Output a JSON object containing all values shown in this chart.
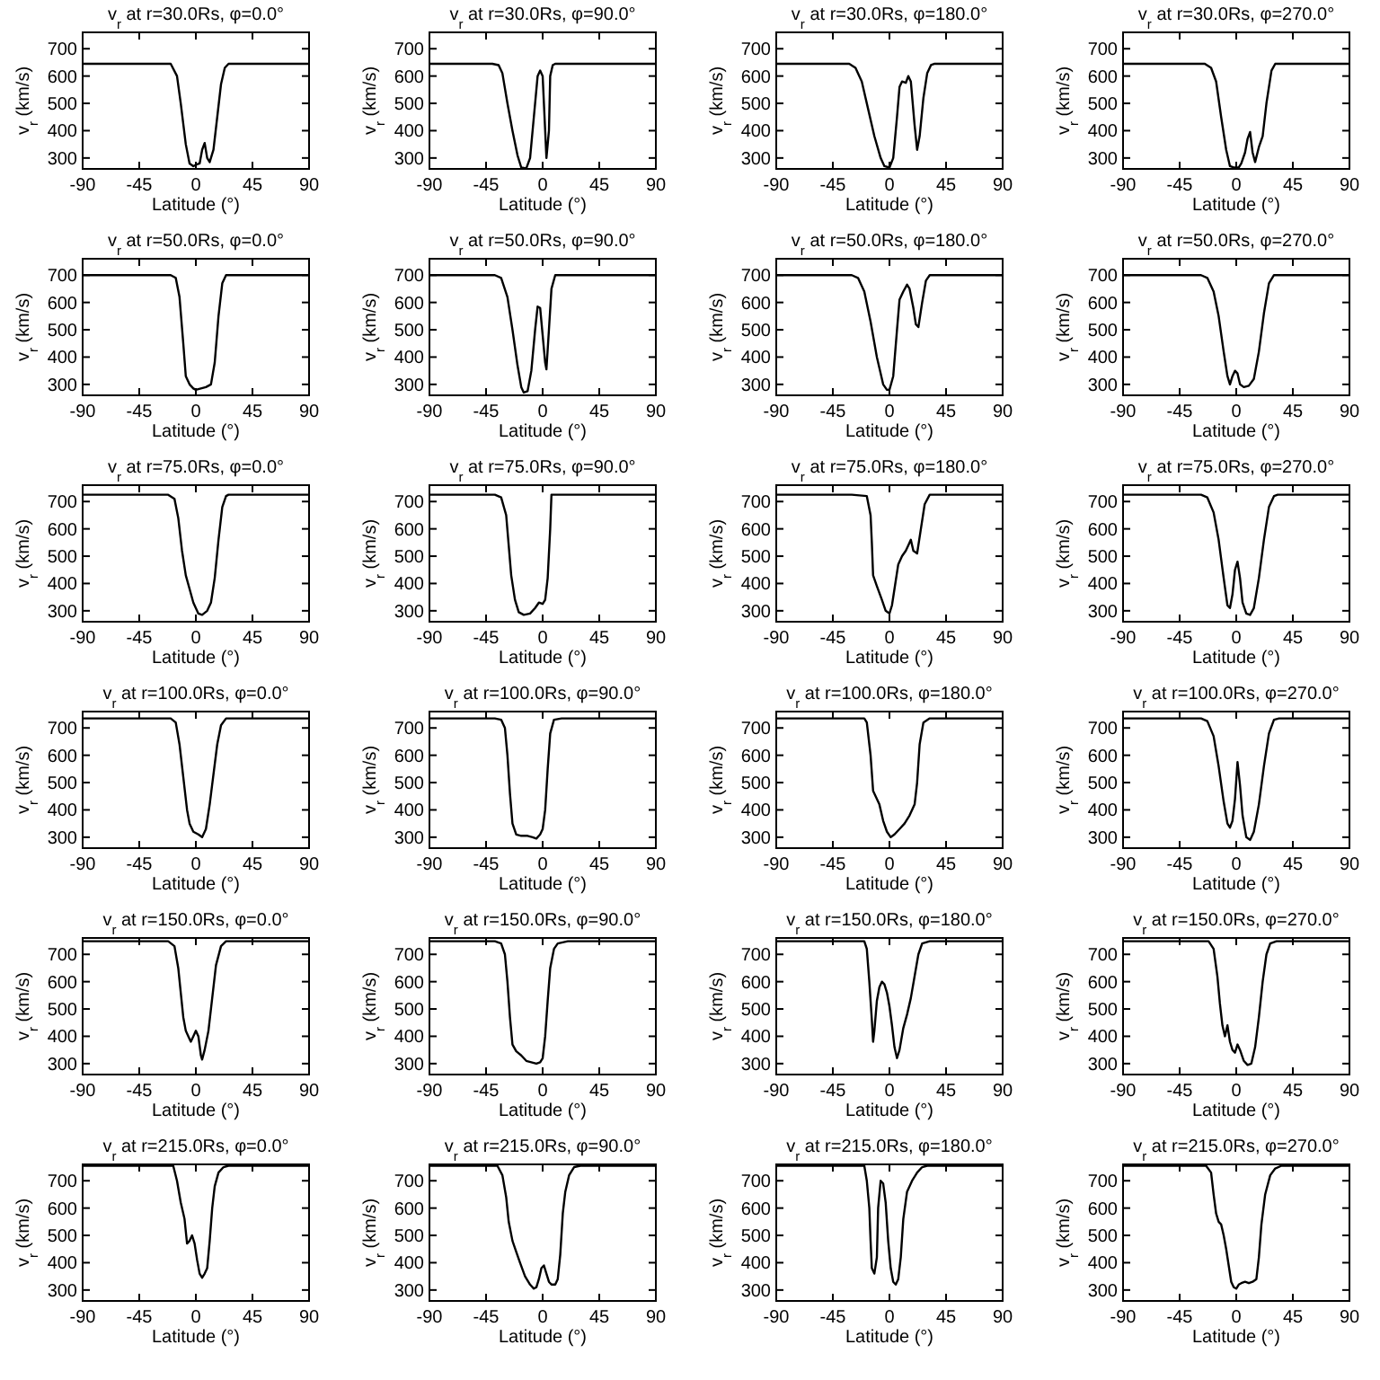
{
  "chart_data": [
    {
      "type": "line",
      "title": "v$_{r}$ at r=30.0Rs, φ=0.0°",
      "xlabel": "Latitude (°)",
      "ylabel": "v$_{r}$ (km/s)",
      "xlim": [
        -90,
        90
      ],
      "ylim": [
        260,
        760
      ],
      "xticks": [
        -90,
        -45,
        0,
        45,
        90
      ],
      "yticks": [
        300,
        400,
        500,
        600,
        700
      ],
      "color": "#000000",
      "x": [
        -90,
        -20,
        -15,
        -12,
        -8,
        -5,
        -2,
        0,
        3,
        5,
        7,
        9,
        11,
        14,
        17,
        20,
        23,
        26,
        90
      ],
      "values": [
        645,
        645,
        600,
        500,
        350,
        280,
        270,
        275,
        280,
        330,
        355,
        300,
        285,
        330,
        450,
        570,
        630,
        645,
        645
      ]
    },
    {
      "type": "line",
      "title": "v$_{r}$ at r=30.0Rs, φ=90.0°",
      "xlabel": "Latitude (°)",
      "ylabel": "v$_{r}$ (km/s)",
      "xlim": [
        -90,
        90
      ],
      "ylim": [
        260,
        760
      ],
      "xticks": [
        -90,
        -45,
        0,
        45,
        90
      ],
      "yticks": [
        300,
        400,
        500,
        600,
        700
      ],
      "color": "#000000",
      "x": [
        -90,
        -40,
        -35,
        -32,
        -28,
        -24,
        -20,
        -17,
        -13,
        -10,
        -7,
        -4,
        -2,
        0,
        2,
        3,
        5,
        6,
        8,
        10,
        90
      ],
      "values": [
        645,
        645,
        640,
        610,
        500,
        400,
        310,
        265,
        262,
        300,
        450,
        600,
        620,
        600,
        400,
        300,
        400,
        600,
        640,
        645,
        645
      ]
    },
    {
      "type": "line",
      "title": "v$_{r}$ at r=30.0Rs, φ=180.0°",
      "xlabel": "Latitude (°)",
      "ylabel": "v$_{r}$ (km/s)",
      "xlim": [
        -90,
        90
      ],
      "ylim": [
        260,
        760
      ],
      "xticks": [
        -90,
        -45,
        0,
        45,
        90
      ],
      "yticks": [
        300,
        400,
        500,
        600,
        700
      ],
      "color": "#000000",
      "x": [
        -90,
        -32,
        -27,
        -22,
        -17,
        -12,
        -7,
        -4,
        0,
        3,
        6,
        8,
        10,
        13,
        15,
        17,
        20,
        22,
        24,
        27,
        30,
        33,
        36,
        90
      ],
      "values": [
        645,
        645,
        630,
        580,
        480,
        380,
        300,
        270,
        265,
        300,
        450,
        560,
        580,
        575,
        600,
        580,
        420,
        330,
        380,
        520,
        610,
        640,
        645,
        645
      ]
    },
    {
      "type": "line",
      "title": "v$_{r}$ at r=30.0Rs, φ=270.0°",
      "xlabel": "Latitude (°)",
      "ylabel": "v$_{r}$ (km/s)",
      "xlim": [
        -90,
        90
      ],
      "ylim": [
        260,
        760
      ],
      "xticks": [
        -90,
        -45,
        0,
        45,
        90
      ],
      "yticks": [
        300,
        400,
        500,
        600,
        700
      ],
      "color": "#000000",
      "x": [
        -90,
        -25,
        -20,
        -16,
        -12,
        -8,
        -5,
        -2,
        2,
        4,
        7,
        9,
        11,
        13,
        15,
        18,
        21,
        24,
        28,
        31,
        90
      ],
      "values": [
        645,
        645,
        630,
        580,
        450,
        330,
        270,
        265,
        265,
        280,
        320,
        370,
        395,
        320,
        285,
        340,
        380,
        500,
        620,
        645,
        645
      ]
    },
    {
      "type": "line",
      "title": "v$_{r}$ at r=50.0Rs, φ=0.0°",
      "xlabel": "Latitude (°)",
      "ylabel": "v$_{r}$ (km/s)",
      "xlim": [
        -90,
        90
      ],
      "ylim": [
        260,
        760
      ],
      "xticks": [
        -90,
        -45,
        0,
        45,
        90
      ],
      "yticks": [
        300,
        400,
        500,
        600,
        700
      ],
      "color": "#000000",
      "x": [
        -90,
        -20,
        -16,
        -13,
        -10,
        -8,
        -5,
        -2,
        0,
        4,
        8,
        12,
        15,
        18,
        21,
        24,
        90
      ],
      "values": [
        700,
        700,
        690,
        620,
        450,
        330,
        300,
        285,
        280,
        285,
        290,
        300,
        380,
        550,
        670,
        700,
        700
      ]
    },
    {
      "type": "line",
      "title": "v$_{r}$ at r=50.0Rs, φ=90.0°",
      "xlabel": "Latitude (°)",
      "ylabel": "v$_{r}$ (km/s)",
      "xlim": [
        -90,
        90
      ],
      "ylim": [
        260,
        760
      ],
      "xticks": [
        -90,
        -45,
        0,
        45,
        90
      ],
      "yticks": [
        300,
        400,
        500,
        600,
        700
      ],
      "color": "#000000",
      "x": [
        -90,
        -38,
        -33,
        -28,
        -24,
        -20,
        -17,
        -15,
        -12,
        -9,
        -6,
        -4,
        -2,
        0,
        2,
        3,
        5,
        7,
        10,
        90
      ],
      "values": [
        700,
        700,
        690,
        620,
        500,
        370,
        290,
        270,
        275,
        350,
        500,
        585,
        580,
        480,
        380,
        355,
        500,
        650,
        700,
        700
      ]
    },
    {
      "type": "line",
      "title": "v$_{r}$ at r=50.0Rs, φ=180.0°",
      "xlabel": "Latitude (°)",
      "ylabel": "v$_{r}$ (km/s)",
      "xlim": [
        -90,
        90
      ],
      "ylim": [
        260,
        760
      ],
      "xticks": [
        -90,
        -45,
        0,
        45,
        90
      ],
      "yticks": [
        300,
        400,
        500,
        600,
        700
      ],
      "color": "#000000",
      "x": [
        -90,
        -30,
        -25,
        -20,
        -15,
        -10,
        -5,
        -2,
        0,
        3,
        6,
        8,
        11,
        14,
        16,
        19,
        21,
        23,
        26,
        29,
        32,
        90
      ],
      "values": [
        700,
        700,
        690,
        640,
        530,
        400,
        300,
        280,
        280,
        330,
        500,
        610,
        640,
        665,
        650,
        580,
        520,
        510,
        600,
        680,
        700,
        700
      ]
    },
    {
      "type": "line",
      "title": "v$_{r}$ at r=50.0Rs, φ=270.0°",
      "xlabel": "Latitude (°)",
      "ylabel": "v$_{r}$ (km/s)",
      "xlim": [
        -90,
        90
      ],
      "ylim": [
        260,
        760
      ],
      "xticks": [
        -90,
        -45,
        0,
        45,
        90
      ],
      "yticks": [
        300,
        400,
        500,
        600,
        700
      ],
      "color": "#000000",
      "x": [
        -90,
        -28,
        -23,
        -18,
        -14,
        -10,
        -7,
        -5,
        -3,
        -1,
        1,
        3,
        6,
        10,
        14,
        18,
        22,
        26,
        30,
        90
      ],
      "values": [
        700,
        700,
        690,
        640,
        550,
        420,
        330,
        300,
        330,
        350,
        340,
        300,
        290,
        295,
        320,
        420,
        560,
        670,
        700,
        700
      ]
    },
    {
      "type": "line",
      "title": "v$_{r}$ at r=75.0Rs, φ=0.0°",
      "xlabel": "Latitude (°)",
      "ylabel": "v$_{r}$ (km/s)",
      "xlim": [
        -90,
        90
      ],
      "ylim": [
        260,
        760
      ],
      "xticks": [
        -90,
        -45,
        0,
        45,
        90
      ],
      "yticks": [
        300,
        400,
        500,
        600,
        700
      ],
      "color": "#000000",
      "x": [
        -90,
        -22,
        -17,
        -14,
        -11,
        -8,
        -5,
        -2,
        2,
        5,
        9,
        12,
        15,
        18,
        21,
        24,
        26,
        90
      ],
      "values": [
        725,
        725,
        710,
        640,
        520,
        430,
        380,
        330,
        290,
        285,
        300,
        330,
        420,
        560,
        680,
        720,
        725,
        725
      ]
    },
    {
      "type": "line",
      "title": "v$_{r}$ at r=75.0Rs, φ=90.0°",
      "xlabel": "Latitude (°)",
      "ylabel": "v$_{r}$ (km/s)",
      "xlim": [
        -90,
        90
      ],
      "ylim": [
        260,
        760
      ],
      "xticks": [
        -90,
        -45,
        0,
        45,
        90
      ],
      "yticks": [
        300,
        400,
        500,
        600,
        700
      ],
      "color": "#000000",
      "x": [
        -90,
        -38,
        -33,
        -29,
        -27,
        -25,
        -22,
        -19,
        -15,
        -10,
        -6,
        -3,
        0,
        2,
        4,
        6,
        7,
        90
      ],
      "values": [
        725,
        725,
        715,
        650,
        540,
        430,
        340,
        295,
        285,
        290,
        310,
        330,
        325,
        340,
        420,
        600,
        725,
        725
      ]
    },
    {
      "type": "line",
      "title": "v$_{r}$ at r=75.0Rs, φ=180.0°",
      "xlabel": "Latitude (°)",
      "ylabel": "v$_{r}$ (km/s)",
      "xlim": [
        -90,
        90
      ],
      "ylim": [
        260,
        760
      ],
      "xticks": [
        -90,
        -45,
        0,
        45,
        90
      ],
      "yticks": [
        300,
        400,
        500,
        600,
        700
      ],
      "color": "#000000",
      "x": [
        -90,
        -30,
        -18,
        -15,
        -14,
        -13,
        -10,
        -6,
        -3,
        0,
        2,
        4,
        7,
        10,
        13,
        15,
        17,
        19,
        22,
        25,
        28,
        32,
        90
      ],
      "values": [
        725,
        725,
        720,
        650,
        550,
        430,
        390,
        340,
        300,
        290,
        320,
        380,
        470,
        500,
        520,
        540,
        560,
        520,
        510,
        600,
        690,
        725,
        725
      ]
    },
    {
      "type": "line",
      "title": "v$_{r}$ at r=75.0Rs, φ=270.0°",
      "xlabel": "Latitude (°)",
      "ylabel": "v$_{r}$ (km/s)",
      "xlim": [
        -90,
        90
      ],
      "ylim": [
        260,
        760
      ],
      "xticks": [
        -90,
        -45,
        0,
        45,
        90
      ],
      "yticks": [
        300,
        400,
        500,
        600,
        700
      ],
      "color": "#000000",
      "x": [
        -90,
        -28,
        -23,
        -18,
        -14,
        -10,
        -7,
        -5,
        -3,
        -1,
        1,
        3,
        5,
        8,
        11,
        14,
        18,
        22,
        26,
        30,
        33,
        90
      ],
      "values": [
        725,
        725,
        715,
        660,
        560,
        420,
        320,
        310,
        360,
        450,
        480,
        420,
        330,
        290,
        285,
        310,
        420,
        560,
        680,
        720,
        725,
        725
      ]
    },
    {
      "type": "line",
      "title": "v$_{r}$ at r=100.0Rs, φ=0.0°",
      "xlabel": "Latitude (°)",
      "ylabel": "v$_{r}$ (km/s)",
      "xlim": [
        -90,
        90
      ],
      "ylim": [
        260,
        760
      ],
      "xticks": [
        -90,
        -45,
        0,
        45,
        90
      ],
      "yticks": [
        300,
        400,
        500,
        600,
        700
      ],
      "color": "#000000",
      "x": [
        -90,
        -20,
        -16,
        -13,
        -10,
        -7,
        -5,
        -2,
        2,
        5,
        8,
        11,
        14,
        17,
        20,
        24,
        90
      ],
      "values": [
        735,
        735,
        720,
        640,
        520,
        400,
        350,
        320,
        310,
        300,
        330,
        420,
        530,
        640,
        710,
        735,
        735
      ]
    },
    {
      "type": "line",
      "title": "v$_{r}$ at r=100.0Rs, φ=90.0°",
      "xlabel": "Latitude (°)",
      "ylabel": "v$_{r}$ (km/s)",
      "xlim": [
        -90,
        90
      ],
      "ylim": [
        260,
        760
      ],
      "xticks": [
        -90,
        -45,
        0,
        45,
        90
      ],
      "yticks": [
        300,
        400,
        500,
        600,
        700
      ],
      "color": "#000000",
      "x": [
        -90,
        -38,
        -33,
        -30,
        -28,
        -26,
        -24,
        -21,
        -17,
        -12,
        -8,
        -5,
        -2,
        0,
        2,
        4,
        6,
        9,
        15,
        90
      ],
      "values": [
        735,
        735,
        730,
        700,
        600,
        460,
        350,
        310,
        305,
        305,
        300,
        295,
        310,
        330,
        400,
        550,
        680,
        730,
        735,
        735
      ]
    },
    {
      "type": "line",
      "title": "v$_{r}$ at r=100.0Rs, φ=180.0°",
      "xlabel": "Latitude (°)",
      "ylabel": "v$_{r}$ (km/s)",
      "xlim": [
        -90,
        90
      ],
      "ylim": [
        260,
        760
      ],
      "xticks": [
        -90,
        -45,
        0,
        45,
        90
      ],
      "yticks": [
        300,
        400,
        500,
        600,
        700
      ],
      "color": "#000000",
      "x": [
        -90,
        -20,
        -18,
        -15,
        -13,
        -11,
        -8,
        -5,
        -2,
        1,
        4,
        8,
        12,
        16,
        20,
        22,
        24,
        27,
        32,
        90
      ],
      "values": [
        735,
        735,
        720,
        600,
        470,
        450,
        420,
        360,
        320,
        300,
        310,
        330,
        350,
        380,
        420,
        500,
        640,
        720,
        735,
        735
      ]
    },
    {
      "type": "line",
      "title": "v$_{r}$ at r=100.0Rs, φ=270.0°",
      "xlabel": "Latitude (°)",
      "ylabel": "v$_{r}$ (km/s)",
      "xlim": [
        -90,
        90
      ],
      "ylim": [
        260,
        760
      ],
      "xticks": [
        -90,
        -45,
        0,
        45,
        90
      ],
      "yticks": [
        300,
        400,
        500,
        600,
        700
      ],
      "color": "#000000",
      "x": [
        -90,
        -28,
        -23,
        -18,
        -14,
        -10,
        -7,
        -5,
        -3,
        -1,
        1,
        3,
        5,
        8,
        11,
        14,
        18,
        22,
        26,
        30,
        34,
        90
      ],
      "values": [
        735,
        735,
        725,
        670,
        560,
        430,
        350,
        335,
        360,
        440,
        575,
        490,
        380,
        300,
        290,
        320,
        420,
        560,
        680,
        730,
        735,
        735
      ]
    },
    {
      "type": "line",
      "title": "v$_{r}$ at r=150.0Rs, φ=0.0°",
      "xlabel": "Latitude (°)",
      "ylabel": "v$_{r}$ (km/s)",
      "xlim": [
        -90,
        90
      ],
      "ylim": [
        260,
        760
      ],
      "xticks": [
        -90,
        -45,
        0,
        45,
        90
      ],
      "yticks": [
        300,
        400,
        500,
        600,
        700
      ],
      "color": "#000000",
      "x": [
        -90,
        -22,
        -17,
        -14,
        -12,
        -10,
        -8,
        -6,
        -4,
        -2,
        0,
        2,
        4,
        5,
        7,
        10,
        13,
        16,
        20,
        24,
        90
      ],
      "values": [
        748,
        748,
        730,
        650,
        560,
        470,
        420,
        400,
        380,
        400,
        420,
        400,
        330,
        315,
        350,
        420,
        540,
        660,
        730,
        748,
        748
      ]
    },
    {
      "type": "line",
      "title": "v$_{r}$ at r=150.0Rs, φ=90.0°",
      "xlabel": "Latitude (°)",
      "ylabel": "v$_{r}$ (km/s)",
      "xlim": [
        -90,
        90
      ],
      "ylim": [
        260,
        760
      ],
      "xticks": [
        -90,
        -45,
        0,
        45,
        90
      ],
      "yticks": [
        300,
        400,
        500,
        600,
        700
      ],
      "color": "#000000",
      "x": [
        -90,
        -38,
        -33,
        -30,
        -28,
        -26,
        -24,
        -21,
        -17,
        -13,
        -9,
        -5,
        -2,
        0,
        2,
        4,
        6,
        9,
        12,
        20,
        90
      ],
      "values": [
        748,
        748,
        740,
        700,
        600,
        470,
        370,
        345,
        330,
        310,
        305,
        300,
        305,
        320,
        400,
        530,
        650,
        720,
        740,
        748,
        748
      ]
    },
    {
      "type": "line",
      "title": "v$_{r}$ at r=150.0Rs, φ=180.0°",
      "xlabel": "Latitude (°)",
      "ylabel": "v$_{r}$ (km/s)",
      "xlim": [
        -90,
        90
      ],
      "ylim": [
        260,
        760
      ],
      "xticks": [
        -90,
        -45,
        0,
        45,
        90
      ],
      "yticks": [
        300,
        400,
        500,
        600,
        700
      ],
      "color": "#000000",
      "x": [
        -90,
        -20,
        -18,
        -16,
        -14,
        -13,
        -12,
        -10,
        -8,
        -6,
        -4,
        -2,
        0,
        2,
        4,
        6,
        8,
        11,
        14,
        17,
        20,
        23,
        26,
        32,
        90
      ],
      "values": [
        748,
        748,
        720,
        600,
        460,
        380,
        420,
        530,
        580,
        600,
        590,
        560,
        510,
        440,
        360,
        320,
        350,
        430,
        480,
        540,
        620,
        700,
        740,
        748,
        748
      ]
    },
    {
      "type": "line",
      "title": "v$_{r}$ at r=150.0Rs, φ=270.0°",
      "xlabel": "Latitude (°)",
      "ylabel": "v$_{r}$ (km/s)",
      "xlim": [
        -90,
        90
      ],
      "ylim": [
        260,
        760
      ],
      "xticks": [
        -90,
        -45,
        0,
        45,
        90
      ],
      "yticks": [
        300,
        400,
        500,
        600,
        700
      ],
      "color": "#000000",
      "x": [
        -90,
        -22,
        -18,
        -15,
        -13,
        -11,
        -9,
        -8,
        -7,
        -5,
        -3,
        -1,
        1,
        3,
        6,
        9,
        12,
        15,
        18,
        21,
        24,
        27,
        32,
        90
      ],
      "values": [
        748,
        748,
        720,
        620,
        520,
        440,
        400,
        420,
        440,
        380,
        350,
        340,
        370,
        350,
        310,
        295,
        300,
        360,
        470,
        600,
        700,
        740,
        748,
        748
      ]
    },
    {
      "type": "line",
      "title": "v$_{r}$ at r=215.0Rs, φ=0.0°",
      "xlabel": "Latitude (°)",
      "ylabel": "v$_{r}$ (km/s)",
      "xlim": [
        -90,
        90
      ],
      "ylim": [
        260,
        760
      ],
      "xticks": [
        -90,
        -45,
        0,
        45,
        90
      ],
      "yticks": [
        300,
        400,
        500,
        600,
        700
      ],
      "color": "#000000",
      "x": [
        -90,
        -18,
        -15,
        -12,
        -9,
        -7,
        -5,
        -3,
        -1,
        1,
        3,
        5,
        7,
        9,
        11,
        13,
        15,
        18,
        22,
        26,
        90
      ],
      "values": [
        755,
        755,
        700,
        620,
        560,
        470,
        480,
        500,
        470,
        410,
        360,
        345,
        360,
        380,
        480,
        600,
        680,
        730,
        750,
        755,
        755
      ]
    },
    {
      "type": "line",
      "title": "v$_{r}$ at r=215.0Rs, φ=90.0°",
      "xlabel": "Latitude (°)",
      "ylabel": "v$_{r}$ (km/s)",
      "xlim": [
        -90,
        90
      ],
      "ylim": [
        260,
        760
      ],
      "xticks": [
        -90,
        -45,
        0,
        45,
        90
      ],
      "yticks": [
        300,
        400,
        500,
        600,
        700
      ],
      "color": "#000000",
      "x": [
        -90,
        -36,
        -32,
        -29,
        -27,
        -24,
        -21,
        -18,
        -14,
        -10,
        -7,
        -5,
        -3,
        -1,
        1,
        3,
        5,
        7,
        10,
        12,
        14,
        16,
        18,
        21,
        25,
        30,
        90
      ],
      "values": [
        755,
        755,
        720,
        640,
        550,
        480,
        440,
        400,
        350,
        320,
        305,
        310,
        340,
        380,
        390,
        360,
        330,
        320,
        320,
        340,
        430,
        580,
        660,
        720,
        750,
        755,
        755
      ]
    },
    {
      "type": "line",
      "title": "v$_{r}$ at r=215.0Rs, φ=180.0°",
      "xlabel": "Latitude (°)",
      "ylabel": "v$_{r}$ (km/s)",
      "xlim": [
        -90,
        90
      ],
      "ylim": [
        260,
        760
      ],
      "xticks": [
        -90,
        -45,
        0,
        45,
        90
      ],
      "yticks": [
        300,
        400,
        500,
        600,
        700
      ],
      "color": "#000000",
      "x": [
        -90,
        -20,
        -18,
        -16,
        -15,
        -14,
        -12,
        -10,
        -9,
        -7,
        -5,
        -3,
        -1,
        1,
        3,
        5,
        7,
        9,
        11,
        14,
        18,
        22,
        26,
        30,
        90
      ],
      "values": [
        755,
        755,
        700,
        600,
        480,
        380,
        360,
        420,
        600,
        700,
        690,
        620,
        480,
        380,
        330,
        320,
        340,
        420,
        560,
        660,
        700,
        730,
        750,
        755,
        755
      ]
    },
    {
      "type": "line",
      "title": "v$_{r}$ at r=215.0Rs, φ=270.0°",
      "xlabel": "Latitude (°)",
      "ylabel": "v$_{r}$ (km/s)",
      "xlim": [
        -90,
        90
      ],
      "ylim": [
        260,
        760
      ],
      "xticks": [
        -90,
        -45,
        0,
        45,
        90
      ],
      "yticks": [
        300,
        400,
        500,
        600,
        700
      ],
      "color": "#000000",
      "x": [
        -90,
        -24,
        -20,
        -18,
        -16,
        -14,
        -12,
        -10,
        -8,
        -6,
        -4,
        -2,
        0,
        2,
        4,
        7,
        10,
        13,
        16,
        18,
        20,
        23,
        27,
        31,
        36,
        90
      ],
      "values": [
        755,
        755,
        730,
        650,
        580,
        550,
        540,
        500,
        450,
        390,
        330,
        310,
        305,
        320,
        325,
        330,
        325,
        330,
        340,
        420,
        540,
        650,
        720,
        745,
        755,
        755
      ]
    }
  ]
}
